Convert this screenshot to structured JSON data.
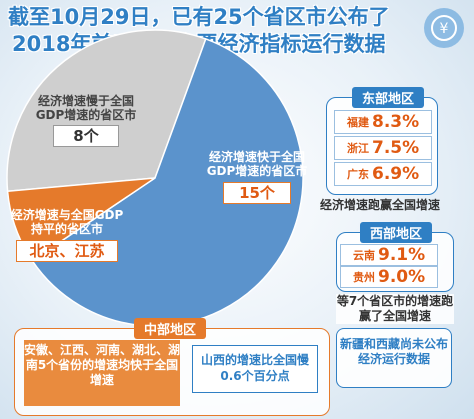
{
  "title": {
    "line1": "截至10月29日，已有25个省区市公布了",
    "line2": "2018年前三季度主要经济指标运行数据"
  },
  "chart_data": {
    "type": "pie",
    "slices": [
      {
        "label": "经济增速快于全国GDP增速的省区市",
        "value": 15,
        "value_text": "15个",
        "color": "#5b93cc"
      },
      {
        "label": "经济增速慢于全国GDP增速的省区市",
        "value": 8,
        "value_text": "8个",
        "color": "#cfcfcf"
      },
      {
        "label": "经济增速与全国GDP持平的省区市",
        "value": 2,
        "value_text": "北京、江苏",
        "color": "#e57a2b"
      }
    ]
  },
  "east": {
    "tag": "东部地区",
    "items": [
      {
        "name": "福建",
        "value": "8.3%"
      },
      {
        "name": "浙江",
        "value": "7.5%"
      },
      {
        "name": "广东",
        "value": "6.9%"
      }
    ],
    "note": "经济增速跑赢全国增速"
  },
  "west": {
    "tag": "西部地区",
    "items": [
      {
        "name": "云南",
        "value": "9.1%"
      },
      {
        "name": "贵州",
        "value": "9.0%"
      }
    ],
    "note": "等7个省区市的增速跑赢了全国增速"
  },
  "xinjiang_tibet": "新疆和西藏尚未公布经济运行数据",
  "central": {
    "tag": "中部地区",
    "left_text": "安徽、江西、河南、湖北、湖南5个省份的增速均快于全国增速",
    "right_text": "山西的增速比全国慢0.6个百分点"
  },
  "colors": {
    "accent_blue": "#2f7fc4",
    "accent_orange": "#e57a2b"
  },
  "icons": {
    "title_icon": "money-bag-icon"
  }
}
